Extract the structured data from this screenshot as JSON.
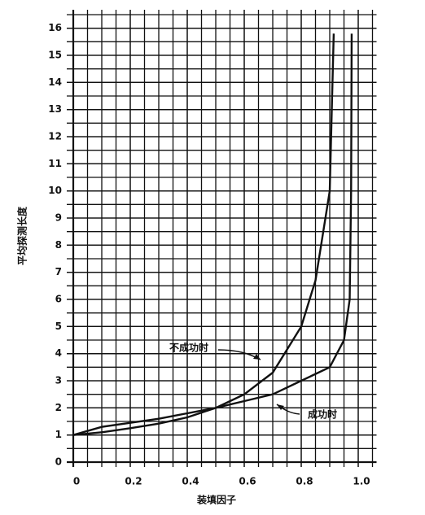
{
  "chart_data": {
    "type": "line",
    "xlabel": "装填因子",
    "ylabel": "平均探测长度",
    "xlim": [
      0,
      1.05
    ],
    "ylim": [
      0,
      16.5
    ],
    "xticks": [
      0,
      0.2,
      0.4,
      0.6,
      0.8,
      {
        "value": 1,
        "label": "1.0"
      }
    ],
    "yticks": [
      0,
      1,
      2,
      3,
      4,
      5,
      6,
      7,
      8,
      9,
      10,
      11,
      12,
      13,
      14,
      15,
      16
    ],
    "grid": true,
    "series": [
      {
        "name": "不成功时",
        "color": "#111111",
        "x": [
          0,
          0.1,
          0.2,
          0.3,
          0.4,
          0.5,
          0.6,
          0.7,
          0.8,
          0.85,
          0.9,
          0.914
        ],
        "values": [
          1,
          1.1,
          1.25,
          1.42,
          1.65,
          2,
          2.5,
          3.3,
          5,
          6.7,
          10,
          15.8
        ]
      },
      {
        "name": "成功时",
        "color": "#111111",
        "x": [
          0,
          0.1,
          0.2,
          0.3,
          0.4,
          0.5,
          0.6,
          0.7,
          0.8,
          0.9,
          0.95,
          0.97,
          0.975,
          0.977
        ],
        "values": [
          1,
          1.3,
          1.45,
          1.6,
          1.8,
          2,
          2.25,
          2.5,
          3,
          3.5,
          4.5,
          6,
          10,
          15.8
        ]
      }
    ]
  }
}
